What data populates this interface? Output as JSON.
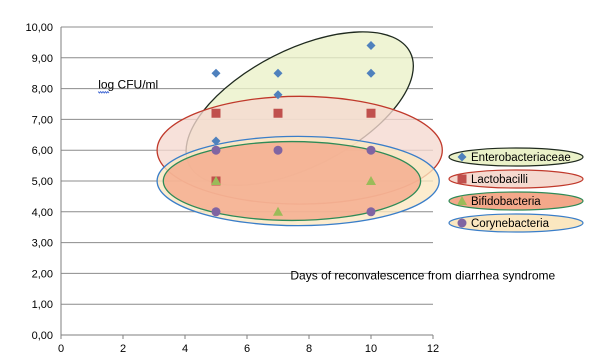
{
  "chart_data": {
    "type": "scatter",
    "title": "",
    "xlabel": "",
    "ylabel": "",
    "xlim": [
      0,
      12
    ],
    "ylim": [
      0,
      10
    ],
    "x_ticks": [
      "0",
      "2",
      "4",
      "6",
      "8",
      "10",
      "12"
    ],
    "y_ticks": [
      "0,00",
      "1,00",
      "2,00",
      "3,00",
      "4,00",
      "5,00",
      "6,00",
      "7,00",
      "8,00",
      "9,00",
      "10,00"
    ],
    "grid": true,
    "legend_position": "right",
    "annotations": [
      {
        "text": "log CFU/ml",
        "x": 1.2,
        "y": 8.0
      },
      {
        "text": "Days of reconvalescence from diarrhea syndrome",
        "x": 7.4,
        "y": 1.8
      }
    ],
    "series": [
      {
        "name": "Enterobacteriaceae",
        "marker": "diamond",
        "color": "#4f81bd",
        "ellipse_fill": "#eaf1c8",
        "ellipse_stroke": "#1f2a1f",
        "points": [
          {
            "x": 5,
            "y": 8.5
          },
          {
            "x": 5,
            "y": 6.3
          },
          {
            "x": 7,
            "y": 8.5
          },
          {
            "x": 7,
            "y": 7.8
          },
          {
            "x": 10,
            "y": 9.4
          },
          {
            "x": 10,
            "y": 8.5
          }
        ]
      },
      {
        "name": "Lactobacilli",
        "marker": "square",
        "color": "#c0504d",
        "ellipse_fill": "#f5d9cf",
        "ellipse_stroke": "#c0392b",
        "points": [
          {
            "x": 5,
            "y": 7.2
          },
          {
            "x": 5,
            "y": 5.0
          },
          {
            "x": 7,
            "y": 7.2
          },
          {
            "x": 10,
            "y": 7.2
          }
        ]
      },
      {
        "name": "Bifidobacteria",
        "marker": "triangle",
        "color": "#9bbb59",
        "ellipse_fill": "#f4a88a",
        "ellipse_stroke": "#2e8b57",
        "points": [
          {
            "x": 5,
            "y": 5.0
          },
          {
            "x": 7,
            "y": 4.0
          },
          {
            "x": 10,
            "y": 5.0
          }
        ]
      },
      {
        "name": "Corynebacteria",
        "marker": "circle",
        "color": "#8064a2",
        "ellipse_fill": "#fbe7c0",
        "ellipse_stroke": "#3a7ec9",
        "points": [
          {
            "x": 5,
            "y": 6.0
          },
          {
            "x": 5,
            "y": 4.0
          },
          {
            "x": 7,
            "y": 6.0
          },
          {
            "x": 10,
            "y": 6.0
          },
          {
            "x": 10,
            "y": 4.0
          }
        ]
      }
    ]
  }
}
